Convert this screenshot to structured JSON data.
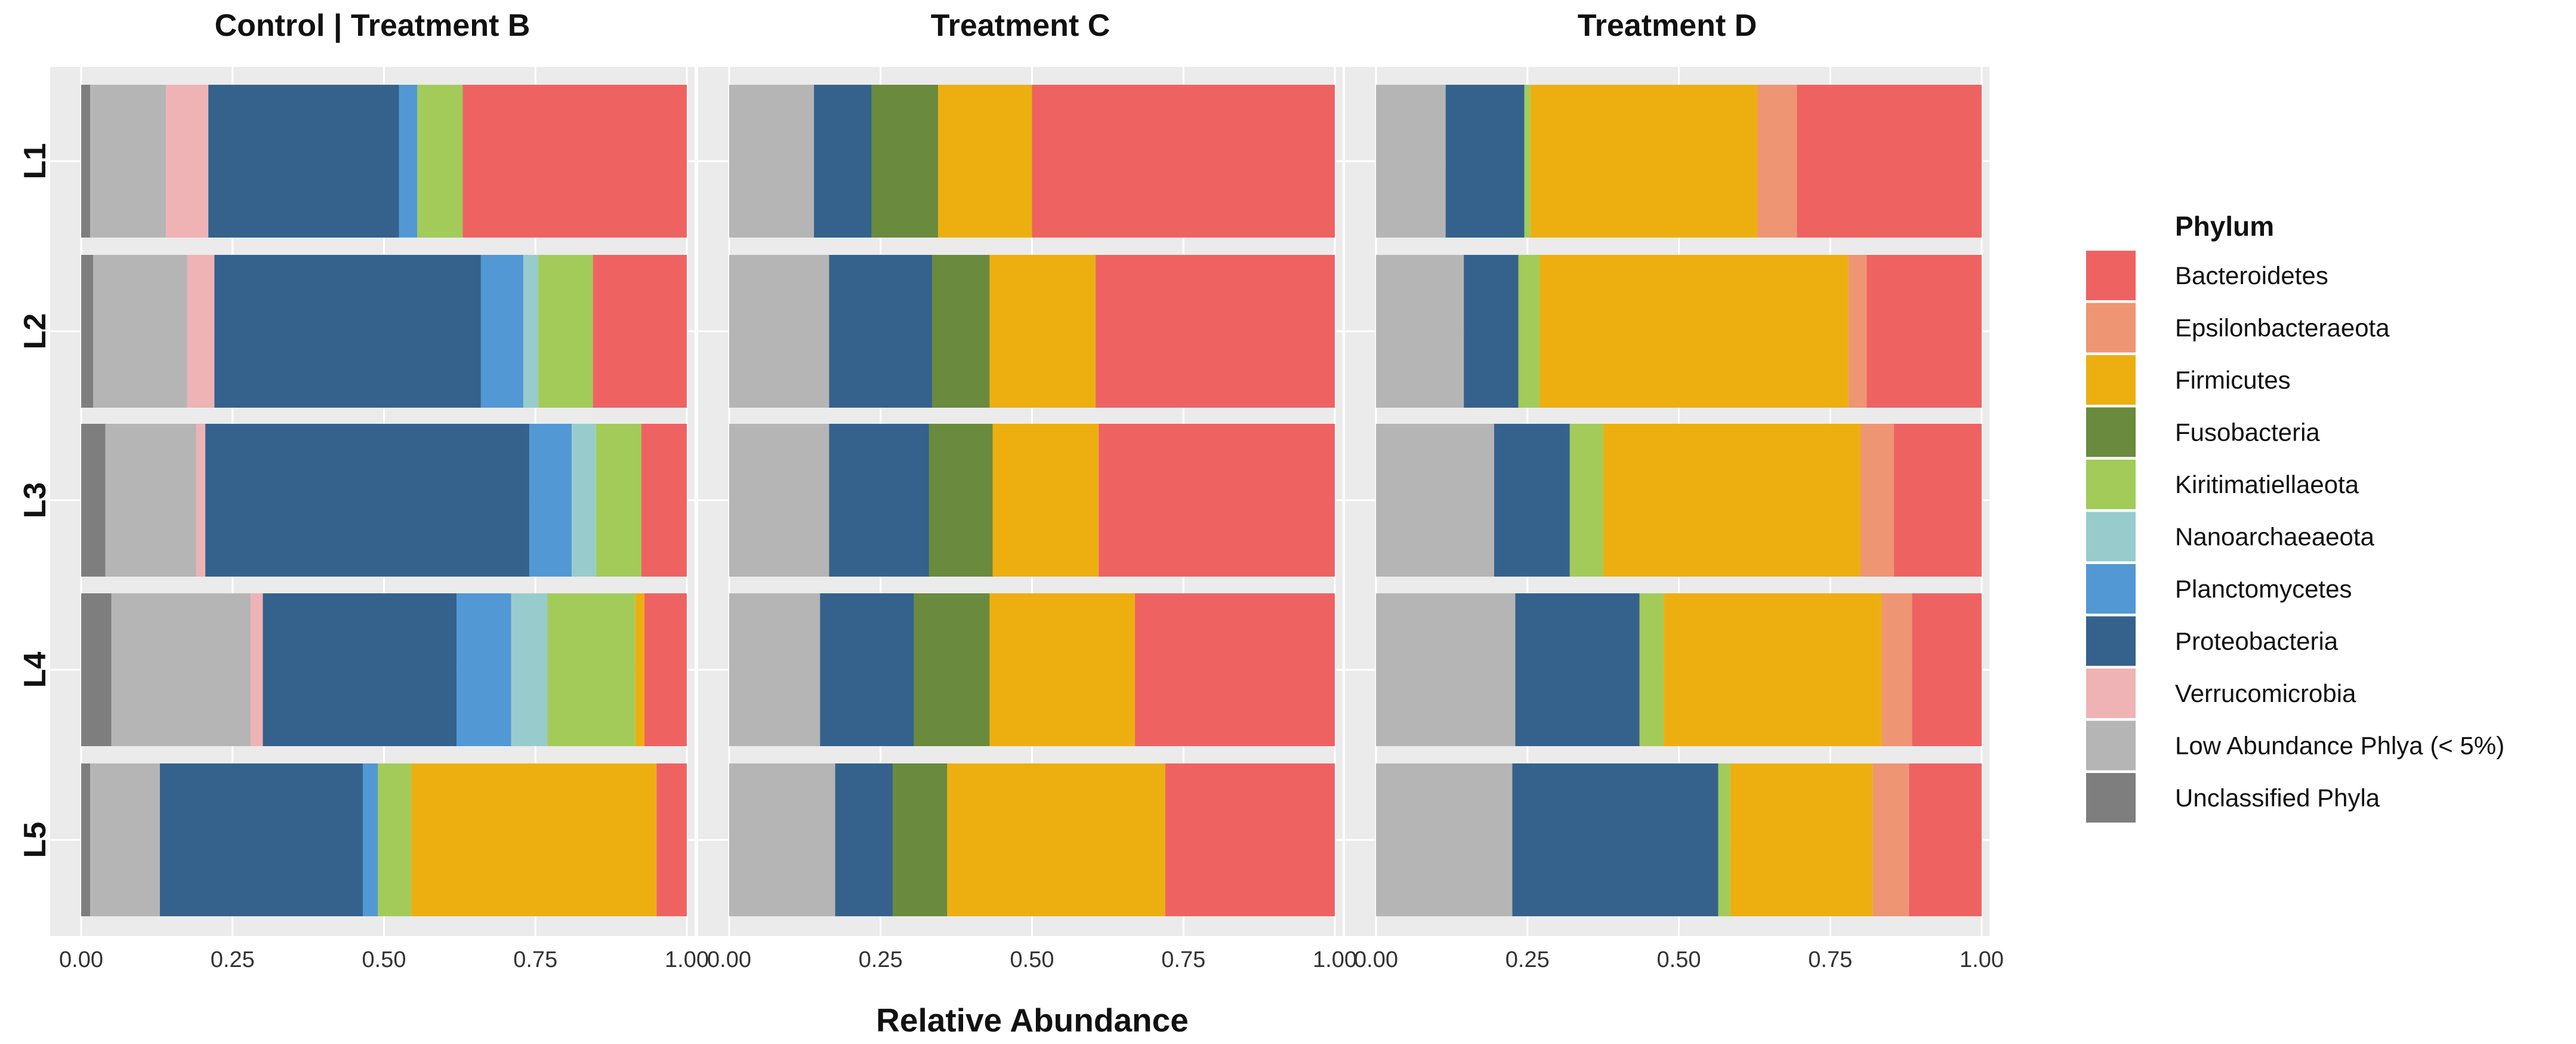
{
  "chart_data": {
    "type": "bar",
    "orientation": "horizontal",
    "stacked": true,
    "xlabel": "Relative Abundance",
    "xlim": [
      0,
      1
    ],
    "xticks": [
      "0.00",
      "0.25",
      "0.50",
      "0.75",
      "1.00"
    ],
    "rows": [
      "L1",
      "L2",
      "L3",
      "L4",
      "L5"
    ],
    "legend": {
      "title": "Phylum",
      "position": "right",
      "items": [
        {
          "name": "Bacteroidetes",
          "color": "#EF6262"
        },
        {
          "name": "Epsilonbacteraeota",
          "color": "#EE9574"
        },
        {
          "name": "Firmicutes",
          "color": "#EDAF10"
        },
        {
          "name": "Fusobacteria",
          "color": "#6A8A3D"
        },
        {
          "name": "Kiritimatiellaeota",
          "color": "#A2CB5A"
        },
        {
          "name": "Nanoarchaeaeota",
          "color": "#98CCCC"
        },
        {
          "name": "Planctomycetes",
          "color": "#5298D4"
        },
        {
          "name": "Proteobacteria",
          "color": "#34628C"
        },
        {
          "name": "Verrucomicrobia",
          "color": "#EFB3B5"
        },
        {
          "name": "Low Abundance Phlya (< 5%)",
          "color": "#B5B5B5"
        },
        {
          "name": "Unclassified Phyla",
          "color": "#7E7E7E"
        }
      ]
    },
    "stack_order": [
      "Unclassified Phyla",
      "Low Abundance Phlya (< 5%)",
      "Verrucomicrobia",
      "Proteobacteria",
      "Planctomycetes",
      "Nanoarchaeaeota",
      "Kiritimatiellaeota",
      "Fusobacteria",
      "Firmicutes",
      "Epsilonbacteraeota",
      "Bacteroidetes"
    ],
    "panels": [
      {
        "title": "Control | Treatment B",
        "bars": [
          {
            "row": "L1",
            "values": {
              "Unclassified Phyla": 0.015,
              "Low Abundance Phlya (< 5%)": 0.125,
              "Verrucomicrobia": 0.07,
              "Proteobacteria": 0.315,
              "Planctomycetes": 0.03,
              "Nanoarchaeaeota": 0.0,
              "Kiritimatiellaeota": 0.075,
              "Fusobacteria": 0.0,
              "Firmicutes": 0.0,
              "Epsilonbacteraeota": 0.0,
              "Bacteroidetes": 0.37
            }
          },
          {
            "row": "L2",
            "values": {
              "Unclassified Phyla": 0.02,
              "Low Abundance Phlya (< 5%)": 0.155,
              "Verrucomicrobia": 0.045,
              "Proteobacteria": 0.44,
              "Planctomycetes": 0.07,
              "Nanoarchaeaeota": 0.025,
              "Kiritimatiellaeota": 0.09,
              "Fusobacteria": 0.0,
              "Firmicutes": 0.0,
              "Epsilonbacteraeota": 0.0,
              "Bacteroidetes": 0.155
            }
          },
          {
            "row": "L3",
            "values": {
              "Unclassified Phyla": 0.04,
              "Low Abundance Phlya (< 5%)": 0.15,
              "Verrucomicrobia": 0.015,
              "Proteobacteria": 0.535,
              "Planctomycetes": 0.07,
              "Nanoarchaeaeota": 0.04,
              "Kiritimatiellaeota": 0.075,
              "Fusobacteria": 0.0,
              "Firmicutes": 0.0,
              "Epsilonbacteraeota": 0.0,
              "Bacteroidetes": 0.075
            }
          },
          {
            "row": "L4",
            "values": {
              "Unclassified Phyla": 0.05,
              "Low Abundance Phlya (< 5%)": 0.23,
              "Verrucomicrobia": 0.02,
              "Proteobacteria": 0.32,
              "Planctomycetes": 0.09,
              "Nanoarchaeaeota": 0.06,
              "Kiritimatiellaeota": 0.145,
              "Fusobacteria": 0.0,
              "Firmicutes": 0.015,
              "Epsilonbacteraeota": 0.0,
              "Bacteroidetes": 0.07
            }
          },
          {
            "row": "L5",
            "values": {
              "Unclassified Phyla": 0.015,
              "Low Abundance Phlya (< 5%)": 0.115,
              "Verrucomicrobia": 0.0,
              "Proteobacteria": 0.335,
              "Planctomycetes": 0.025,
              "Nanoarchaeaeota": 0.0,
              "Kiritimatiellaeota": 0.055,
              "Fusobacteria": 0.0,
              "Firmicutes": 0.405,
              "Epsilonbacteraeota": 0.0,
              "Bacteroidetes": 0.05
            }
          }
        ]
      },
      {
        "title": "Treatment C",
        "bars": [
          {
            "row": "L1",
            "values": {
              "Unclassified Phyla": 0.0,
              "Low Abundance Phlya (< 5%)": 0.14,
              "Verrucomicrobia": 0.0,
              "Proteobacteria": 0.095,
              "Planctomycetes": 0.0,
              "Nanoarchaeaeota": 0.0,
              "Kiritimatiellaeota": 0.0,
              "Fusobacteria": 0.11,
              "Firmicutes": 0.155,
              "Epsilonbacteraeota": 0.0,
              "Bacteroidetes": 0.5
            }
          },
          {
            "row": "L2",
            "values": {
              "Unclassified Phyla": 0.0,
              "Low Abundance Phlya (< 5%)": 0.165,
              "Verrucomicrobia": 0.0,
              "Proteobacteria": 0.17,
              "Planctomycetes": 0.0,
              "Nanoarchaeaeota": 0.0,
              "Kiritimatiellaeota": 0.0,
              "Fusobacteria": 0.095,
              "Firmicutes": 0.175,
              "Epsilonbacteraeota": 0.0,
              "Bacteroidetes": 0.395
            }
          },
          {
            "row": "L3",
            "values": {
              "Unclassified Phyla": 0.0,
              "Low Abundance Phlya (< 5%)": 0.165,
              "Verrucomicrobia": 0.0,
              "Proteobacteria": 0.165,
              "Planctomycetes": 0.0,
              "Nanoarchaeaeota": 0.0,
              "Kiritimatiellaeota": 0.0,
              "Fusobacteria": 0.105,
              "Firmicutes": 0.175,
              "Epsilonbacteraeota": 0.0,
              "Bacteroidetes": 0.39
            }
          },
          {
            "row": "L4",
            "values": {
              "Unclassified Phyla": 0.0,
              "Low Abundance Phlya (< 5%)": 0.15,
              "Verrucomicrobia": 0.0,
              "Proteobacteria": 0.155,
              "Planctomycetes": 0.0,
              "Nanoarchaeaeota": 0.0,
              "Kiritimatiellaeota": 0.0,
              "Fusobacteria": 0.125,
              "Firmicutes": 0.24,
              "Epsilonbacteraeota": 0.0,
              "Bacteroidetes": 0.33
            }
          },
          {
            "row": "L5",
            "values": {
              "Unclassified Phyla": 0.0,
              "Low Abundance Phlya (< 5%)": 0.175,
              "Verrucomicrobia": 0.0,
              "Proteobacteria": 0.095,
              "Planctomycetes": 0.0,
              "Nanoarchaeaeota": 0.0,
              "Kiritimatiellaeota": 0.0,
              "Fusobacteria": 0.09,
              "Firmicutes": 0.36,
              "Epsilonbacteraeota": 0.0,
              "Bacteroidetes": 0.28
            }
          }
        ]
      },
      {
        "title": "Treatment D",
        "bars": [
          {
            "row": "L1",
            "values": {
              "Unclassified Phyla": 0.0,
              "Low Abundance Phlya (< 5%)": 0.115,
              "Verrucomicrobia": 0.0,
              "Proteobacteria": 0.13,
              "Planctomycetes": 0.0,
              "Nanoarchaeaeota": 0.0,
              "Kiritimatiellaeota": 0.01,
              "Fusobacteria": 0.0,
              "Firmicutes": 0.375,
              "Epsilonbacteraeota": 0.065,
              "Bacteroidetes": 0.305
            }
          },
          {
            "row": "L2",
            "values": {
              "Unclassified Phyla": 0.0,
              "Low Abundance Phlya (< 5%)": 0.145,
              "Verrucomicrobia": 0.0,
              "Proteobacteria": 0.09,
              "Planctomycetes": 0.0,
              "Nanoarchaeaeota": 0.0,
              "Kiritimatiellaeota": 0.035,
              "Fusobacteria": 0.0,
              "Firmicutes": 0.51,
              "Epsilonbacteraeota": 0.03,
              "Bacteroidetes": 0.19
            }
          },
          {
            "row": "L3",
            "values": {
              "Unclassified Phyla": 0.0,
              "Low Abundance Phlya (< 5%)": 0.195,
              "Verrucomicrobia": 0.0,
              "Proteobacteria": 0.125,
              "Planctomycetes": 0.0,
              "Nanoarchaeaeota": 0.0,
              "Kiritimatiellaeota": 0.055,
              "Fusobacteria": 0.0,
              "Firmicutes": 0.425,
              "Epsilonbacteraeota": 0.055,
              "Bacteroidetes": 0.145
            }
          },
          {
            "row": "L4",
            "values": {
              "Unclassified Phyla": 0.0,
              "Low Abundance Phlya (< 5%)": 0.23,
              "Verrucomicrobia": 0.0,
              "Proteobacteria": 0.205,
              "Planctomycetes": 0.0,
              "Nanoarchaeaeota": 0.0,
              "Kiritimatiellaeota": 0.04,
              "Fusobacteria": 0.0,
              "Firmicutes": 0.36,
              "Epsilonbacteraeota": 0.05,
              "Bacteroidetes": 0.115
            }
          },
          {
            "row": "L5",
            "values": {
              "Unclassified Phyla": 0.0,
              "Low Abundance Phlya (< 5%)": 0.225,
              "Verrucomicrobia": 0.0,
              "Proteobacteria": 0.34,
              "Planctomycetes": 0.0,
              "Nanoarchaeaeota": 0.0,
              "Kiritimatiellaeota": 0.02,
              "Fusobacteria": 0.0,
              "Firmicutes": 0.235,
              "Epsilonbacteraeota": 0.06,
              "Bacteroidetes": 0.12
            }
          }
        ]
      }
    ]
  }
}
